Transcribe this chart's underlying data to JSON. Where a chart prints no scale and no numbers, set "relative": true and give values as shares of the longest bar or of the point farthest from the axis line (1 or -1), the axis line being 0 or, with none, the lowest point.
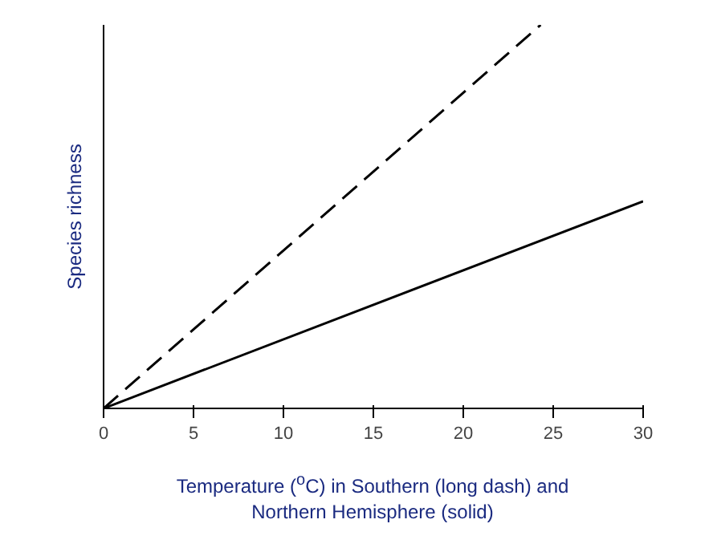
{
  "chart_data": {
    "type": "line",
    "relative": true,
    "xlabel": "Temperature ($^{o}$C) in Southern (long dash) and Northern Hemisphere (solid)",
    "ylabel": "Species richness",
    "xlim": [
      0,
      30
    ],
    "xticks": [
      0,
      5,
      10,
      15,
      20,
      25,
      30
    ],
    "tick_labels": "x",
    "grid": false,
    "series": [
      {
        "x": [
          0,
          24.3
        ],
        "values": [
          0,
          1
        ],
        "color": "#000000",
        "line_style": "dashed"
      },
      {
        "x": [
          0,
          30
        ],
        "values": [
          0,
          0.54
        ],
        "color": "#000000",
        "line_style": "solid"
      }
    ]
  }
}
